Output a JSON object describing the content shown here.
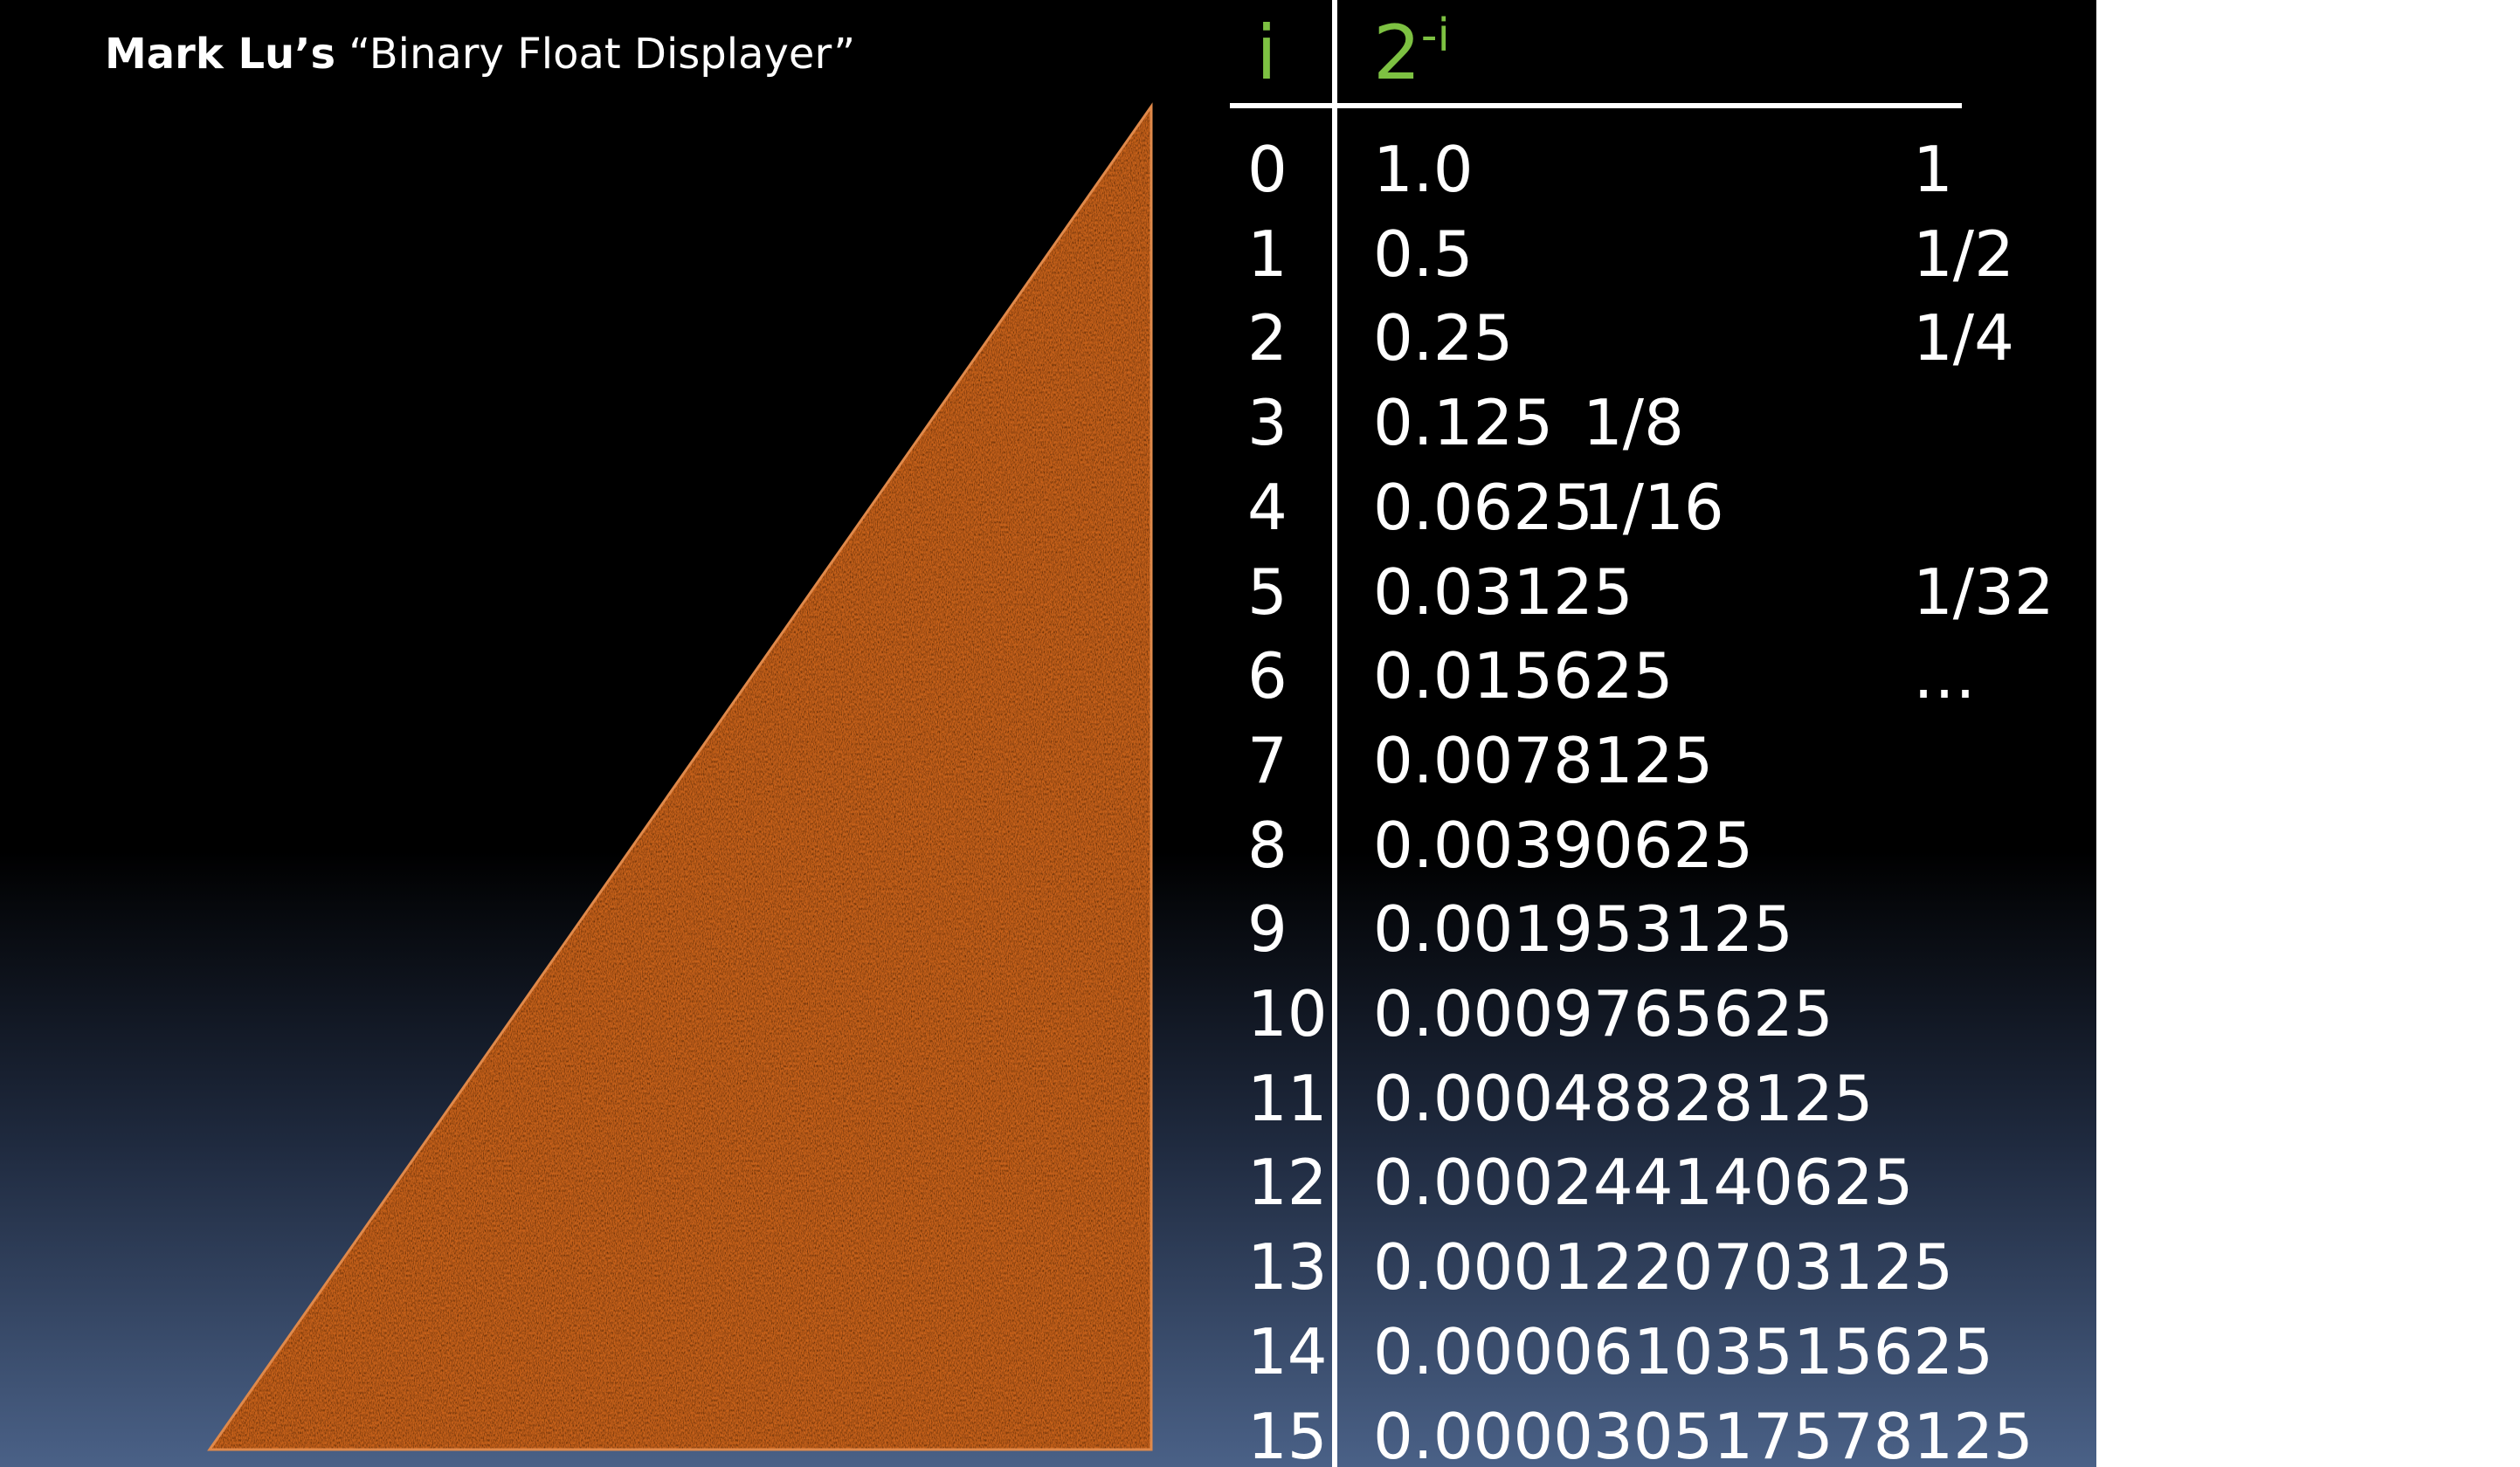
{
  "title": {
    "author": "Mark Lu’s",
    "name": "“Binary Float Displayer”"
  },
  "table": {
    "header": {
      "index": "i",
      "base": "2",
      "exponent": "-i"
    },
    "rows": [
      {
        "i": "0",
        "value": "1.0",
        "fraction": "1"
      },
      {
        "i": "1",
        "value": "0.5",
        "fraction": "1/2"
      },
      {
        "i": "2",
        "value": "0.25",
        "fraction": "1/4"
      },
      {
        "i": "3",
        "value": "0.125",
        "fraction": "1/8"
      },
      {
        "i": "4",
        "value": "0.0625",
        "fraction": "1/16"
      },
      {
        "i": "5",
        "value": "0.03125",
        "fraction": "1/32"
      },
      {
        "i": "6",
        "value": "0.015625",
        "fraction": "…"
      },
      {
        "i": "7",
        "value": "0.0078125",
        "fraction": ""
      },
      {
        "i": "8",
        "value": "0.00390625",
        "fraction": ""
      },
      {
        "i": "9",
        "value": "0.001953125",
        "fraction": ""
      },
      {
        "i": "10",
        "value": "0.0009765625",
        "fraction": ""
      },
      {
        "i": "11",
        "value": "0.00048828125",
        "fraction": ""
      },
      {
        "i": "12",
        "value": "0.000244140625",
        "fraction": ""
      },
      {
        "i": "13",
        "value": "0.0001220703125",
        "fraction": ""
      },
      {
        "i": "14",
        "value": "0.00006103515625",
        "fraction": ""
      },
      {
        "i": "15",
        "value": "0.000030517578125",
        "fraction": ""
      }
    ]
  },
  "colors": {
    "header_accent": "#7dc142",
    "triangle": "#c8621a",
    "text": "#ffffff"
  }
}
